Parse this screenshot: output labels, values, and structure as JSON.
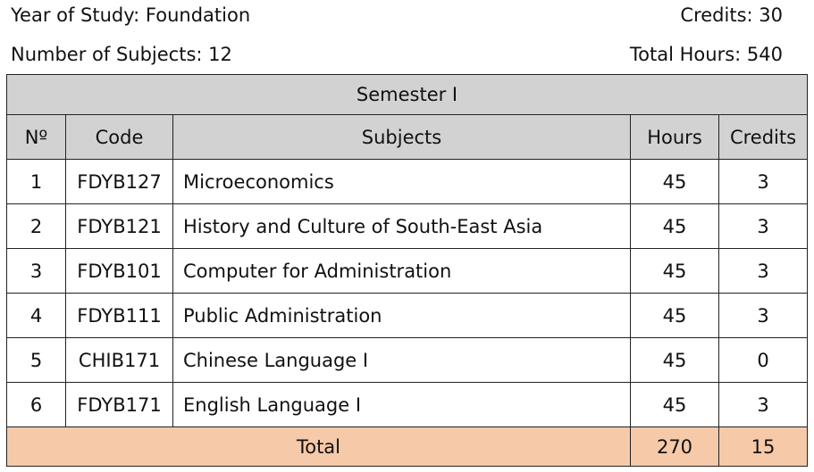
{
  "info": {
    "year_of_study": "Year of Study: Foundation",
    "credits": "Credits: 30",
    "number_of_subjects": "Number of Subjects: 12",
    "total_hours": "Total Hours: 540"
  },
  "table": {
    "semester_title": "Semester I",
    "headers": {
      "no": "Nº",
      "code": "Code",
      "subjects": "Subjects",
      "hours": "Hours",
      "credits": "Credits"
    },
    "rows": [
      {
        "no": "1",
        "code": "FDYB127",
        "subject": "Microeconomics",
        "hours": "45",
        "credits": "3"
      },
      {
        "no": "2",
        "code": "FDYB121",
        "subject": "History and Culture of South-East Asia",
        "hours": "45",
        "credits": "3"
      },
      {
        "no": "3",
        "code": "FDYB101",
        "subject": "Computer for Administration",
        "hours": "45",
        "credits": "3"
      },
      {
        "no": "4",
        "code": "FDYB111",
        "subject": "Public Administration",
        "hours": "45",
        "credits": "3"
      },
      {
        "no": "5",
        "code": "CHIB171",
        "subject": "Chinese Language I",
        "hours": "45",
        "credits": "0"
      },
      {
        "no": "6",
        "code": "FDYB171",
        "subject": "English Language I",
        "hours": "45",
        "credits": "3"
      }
    ],
    "total": {
      "label": "Total",
      "hours": "270",
      "credits": "15"
    }
  }
}
